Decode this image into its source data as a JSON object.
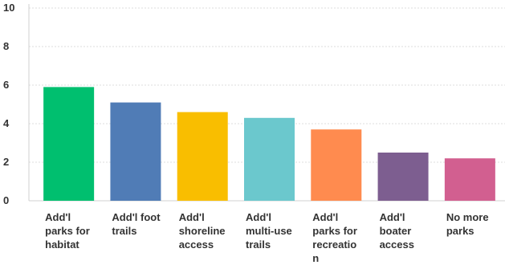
{
  "chart_data": {
    "type": "bar",
    "categories": [
      "Add'l parks for habitat",
      "Add'l foot trails",
      "Add'l shoreline access",
      "Add'l multi-use trails",
      "Add'l parks for recreation",
      "Add'l boater access",
      "No more parks"
    ],
    "values": [
      5.9,
      5.1,
      4.6,
      4.3,
      3.7,
      2.5,
      2.2
    ],
    "colors": [
      "#00BF6F",
      "#507CB6",
      "#F9BE00",
      "#6BC8CD",
      "#FF8B4F",
      "#7D5E90",
      "#D25F90"
    ],
    "ylim": [
      0,
      10
    ],
    "yticks": [
      0,
      2,
      4,
      6,
      8,
      10
    ],
    "grid": true,
    "title": "",
    "xlabel": "",
    "ylabel": ""
  }
}
